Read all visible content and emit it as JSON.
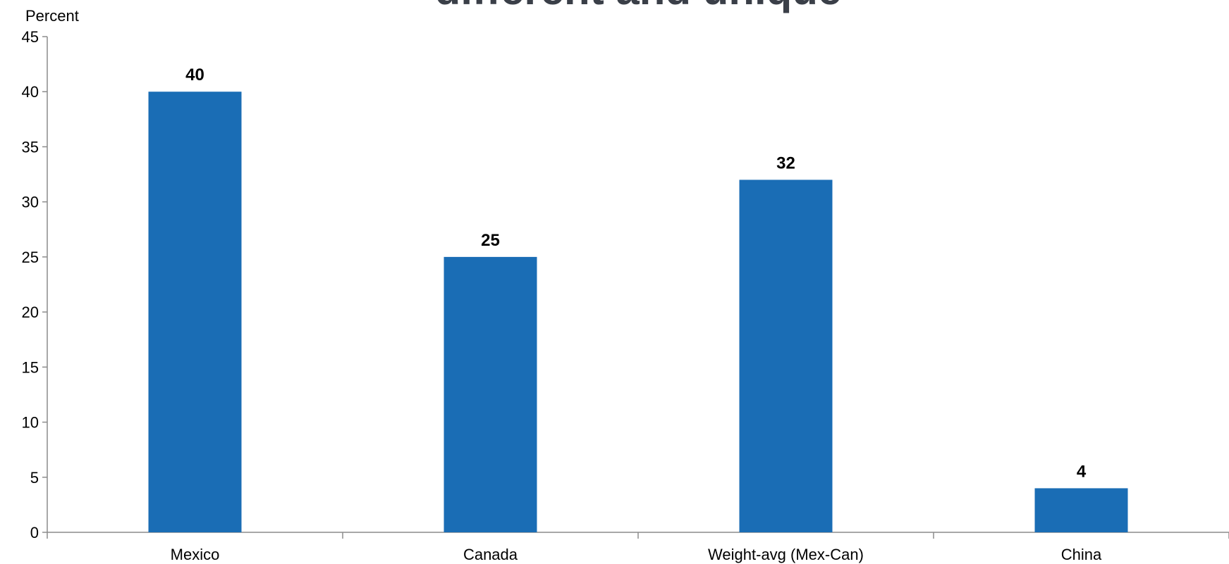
{
  "chart_data": {
    "type": "bar",
    "title": "different and unique",
    "ylabel": "Percent",
    "categories": [
      "Mexico",
      "Canada",
      "Weight-avg (Mex-Can)",
      "China"
    ],
    "values": [
      40,
      25,
      32,
      4
    ],
    "data_labels": [
      "40",
      "25",
      "32",
      "4"
    ],
    "ylim": [
      0,
      45
    ],
    "yticks": [
      0,
      5,
      10,
      15,
      20,
      25,
      30,
      35,
      40,
      45
    ],
    "grid": false,
    "legend": "none",
    "bar_color": "#1a6db5",
    "axis_color": "#8c8c8c"
  }
}
